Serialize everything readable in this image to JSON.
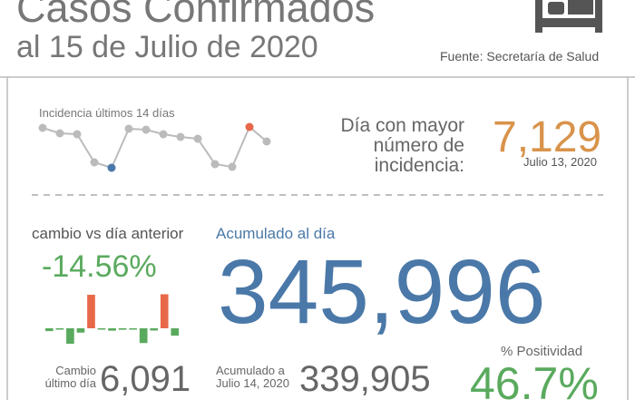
{
  "header": {
    "title": "Casos Confirmados",
    "subtitle": "al 15 de Julio de 2020",
    "source": "Fuente: Secretaría de Salud"
  },
  "sparkline": {
    "label": "Incidencia últimos 14 días",
    "values": [
      7064,
      6674,
      6609,
      4594,
      4204,
      6999,
      6934,
      6609,
      6414,
      6284,
      4464,
      4269,
      7129,
      6091
    ]
  },
  "peak": {
    "label": "Día con mayor número de incidencia:",
    "value": "7,129",
    "date": "Julio 13, 2020"
  },
  "change": {
    "label": "cambio vs día anterior",
    "value": "-14.56%",
    "bars": [
      -5.5,
      -1,
      -30.5,
      -8.5,
      66,
      -0.9,
      -4.7,
      -2.9,
      -2,
      -29,
      -4.4,
      67,
      -14.56
    ]
  },
  "cumulative": {
    "label": "Acumulado al día",
    "value": "345,996"
  },
  "last_change": {
    "label": "Cambio último día",
    "value": "6,091"
  },
  "previous": {
    "label": "Acumulado a Julio 14, 2020",
    "value": "339,905"
  },
  "positivity": {
    "label": "% Positividad",
    "value": "46.7%"
  }
}
